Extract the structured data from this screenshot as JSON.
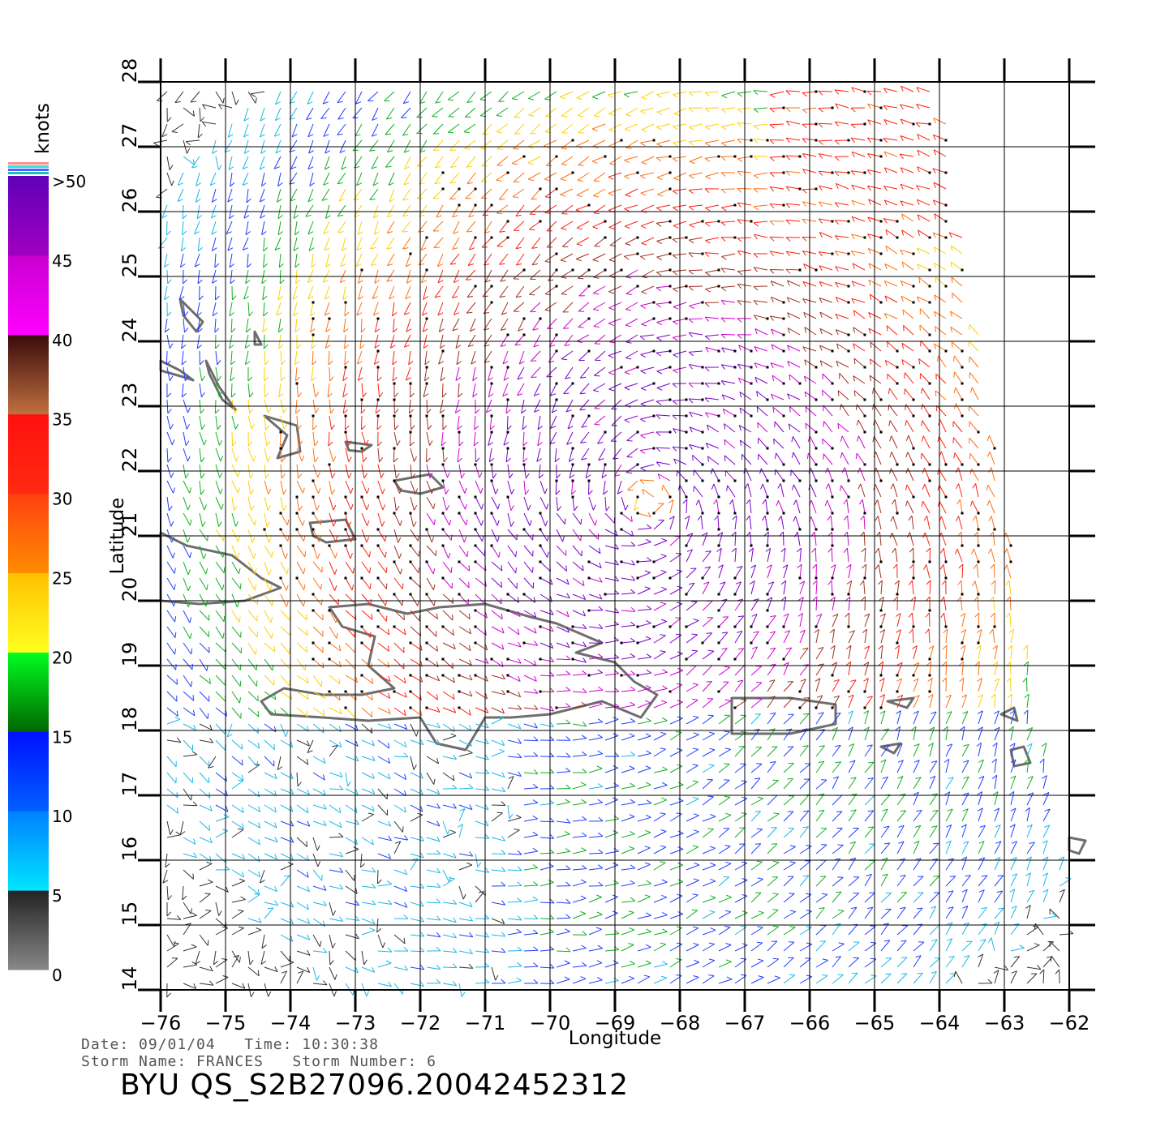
{
  "legend": {
    "unit_label": "knots",
    "labels": [
      ">50",
      "45",
      "40",
      "35",
      "30",
      "25",
      "20",
      "15",
      "10",
      "5",
      "0"
    ],
    "bands": [
      {
        "from": 0,
        "to": 5,
        "colors": [
          "#888888",
          "#222222"
        ]
      },
      {
        "from": 5,
        "to": 10,
        "colors": [
          "#00e5ff",
          "#0080ff"
        ]
      },
      {
        "from": 10,
        "to": 15,
        "colors": [
          "#0060ff",
          "#0010ff"
        ]
      },
      {
        "from": 15,
        "to": 20,
        "colors": [
          "#006600",
          "#00ff20"
        ]
      },
      {
        "from": 20,
        "to": 25,
        "colors": [
          "#ffff20",
          "#ffc000"
        ]
      },
      {
        "from": 25,
        "to": 30,
        "colors": [
          "#ff8c00",
          "#ff4010"
        ]
      },
      {
        "from": 30,
        "to": 35,
        "colors": [
          "#ff2a10",
          "#ff1010"
        ]
      },
      {
        "from": 35,
        "to": 40,
        "colors": [
          "#c07040",
          "#3a0a0a"
        ]
      },
      {
        "from": 40,
        "to": 45,
        "colors": [
          "#ff00ff",
          "#c800d0"
        ]
      },
      {
        "from": 45,
        "to": 50,
        "colors": [
          "#a000c0",
          "#6000b8"
        ]
      }
    ],
    "top_stripe_colors": [
      "#ff9090",
      "#30e0e0",
      "#5060ff",
      "#20c0c0"
    ]
  },
  "map": {
    "lon_range": [
      -76,
      -62
    ],
    "lat_range": [
      14,
      28
    ],
    "x_ticks": [
      "−76",
      "−75",
      "−74",
      "−73",
      "−72",
      "−71",
      "−70",
      "−69",
      "−68",
      "−67",
      "−66",
      "−65",
      "−64",
      "−63",
      "−62"
    ],
    "y_ticks": [
      "14",
      "15",
      "16",
      "17",
      "18",
      "19",
      "20",
      "21",
      "22",
      "23",
      "24",
      "25",
      "26",
      "27",
      "28"
    ],
    "xlabel": "Longitude",
    "ylabel": "Latitude",
    "storm_center": {
      "lon": -68.5,
      "lat": 21.5
    },
    "land_color": "#6e6e6e"
  },
  "info": {
    "date_line": "Date: 09/01/04   Time: 10:30:38",
    "storm_line": "Storm Name: FRANCES   Storm Number: 6",
    "file_id": "BYU QS_S2B27096.20042452312"
  }
}
